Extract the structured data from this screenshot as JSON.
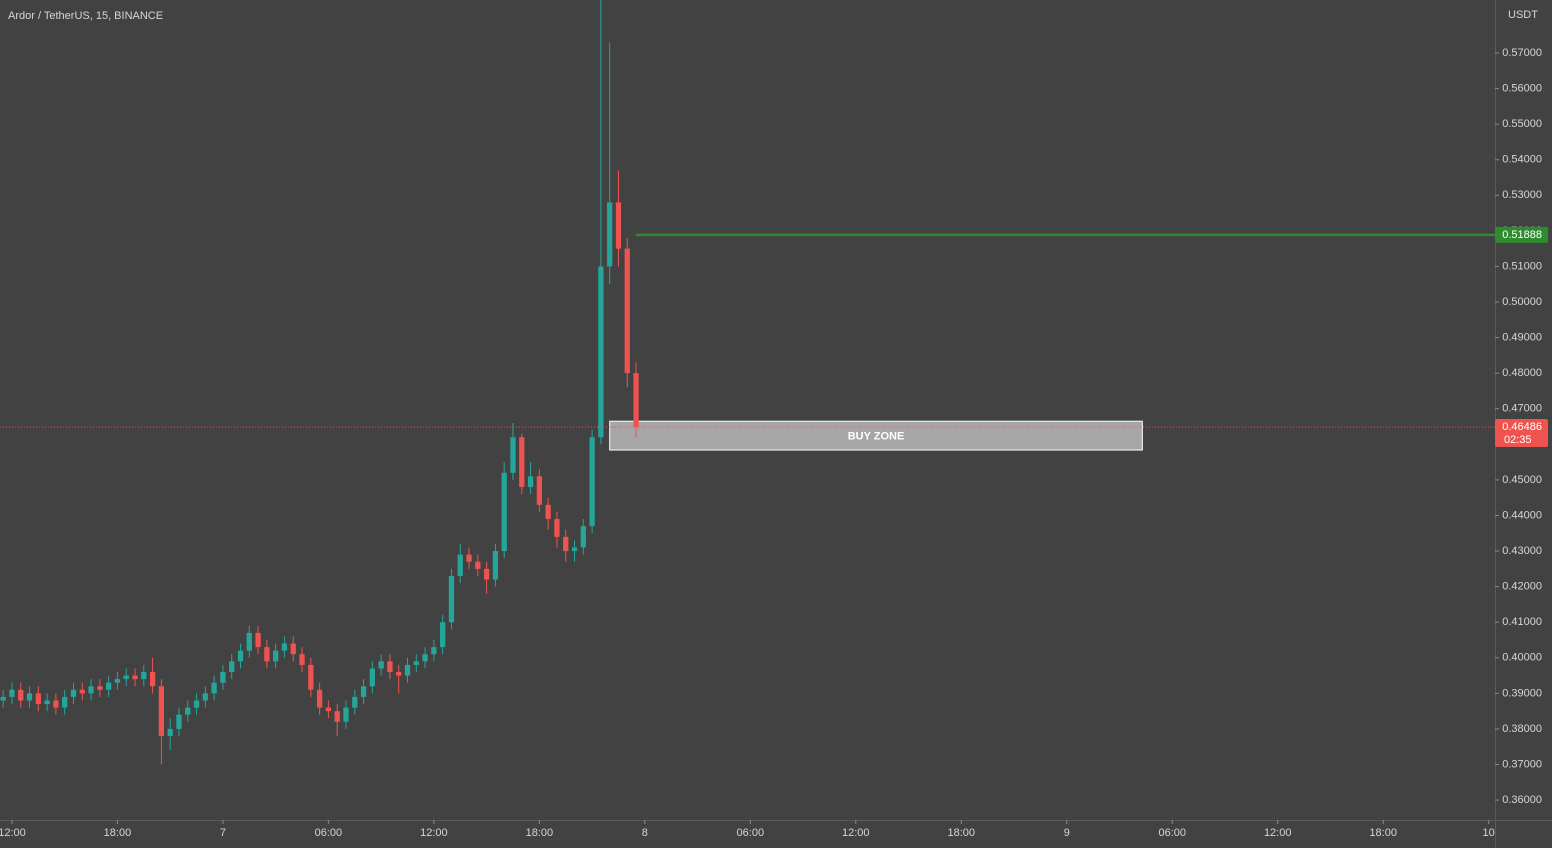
{
  "chart_data": {
    "type": "candlestick",
    "title": "Ardor / TetherUS, 15, BINANCE",
    "currency": "USDT",
    "up_color": "#26a69a",
    "down_color": "#ef5350",
    "x": [
      11.5,
      12,
      12.5,
      13,
      13.5,
      14,
      14.5,
      15,
      15.5,
      16,
      16.5,
      17,
      17.5,
      18,
      18.5,
      19,
      19.5,
      20,
      20.5,
      21,
      21.5,
      22,
      22.5,
      23,
      23.5,
      24,
      24.5,
      25,
      25.5,
      26,
      26.5,
      27,
      27.5,
      28,
      28.5,
      29,
      29.5,
      30,
      30.5,
      31,
      31.5,
      32,
      32.5,
      33,
      33.5,
      34,
      34.5,
      35,
      35.5,
      36,
      36.5,
      37,
      37.5,
      38,
      38.5,
      39,
      39.5,
      40,
      40.5,
      41,
      41.5,
      42,
      42.5,
      43,
      43.5,
      44,
      44.5,
      45,
      45.5,
      46,
      46.5,
      47,
      47.5
    ],
    "open": [
      0.388,
      0.389,
      0.391,
      0.388,
      0.39,
      0.387,
      0.388,
      0.386,
      0.389,
      0.391,
      0.39,
      0.392,
      0.391,
      0.393,
      0.394,
      0.395,
      0.394,
      0.396,
      0.392,
      0.378,
      0.38,
      0.384,
      0.386,
      0.388,
      0.39,
      0.393,
      0.396,
      0.399,
      0.402,
      0.407,
      0.403,
      0.399,
      0.402,
      0.404,
      0.401,
      0.398,
      0.391,
      0.386,
      0.385,
      0.382,
      0.386,
      0.389,
      0.392,
      0.397,
      0.399,
      0.396,
      0.395,
      0.398,
      0.399,
      0.401,
      0.403,
      0.41,
      0.423,
      0.429,
      0.427,
      0.425,
      0.422,
      0.43,
      0.452,
      0.462,
      0.448,
      0.451,
      0.443,
      0.439,
      0.434,
      0.43,
      0.431,
      0.437,
      0.462,
      0.51,
      0.528,
      0.515,
      0.48
    ],
    "high": [
      0.391,
      0.393,
      0.393,
      0.392,
      0.392,
      0.39,
      0.39,
      0.391,
      0.393,
      0.393,
      0.394,
      0.394,
      0.395,
      0.396,
      0.397,
      0.397,
      0.398,
      0.4,
      0.394,
      0.383,
      0.386,
      0.388,
      0.39,
      0.392,
      0.395,
      0.398,
      0.401,
      0.404,
      0.409,
      0.409,
      0.405,
      0.404,
      0.406,
      0.406,
      0.403,
      0.4,
      0.393,
      0.388,
      0.387,
      0.388,
      0.391,
      0.394,
      0.399,
      0.401,
      0.401,
      0.398,
      0.4,
      0.401,
      0.403,
      0.405,
      0.412,
      0.425,
      0.432,
      0.431,
      0.429,
      0.427,
      0.432,
      0.455,
      0.466,
      0.463,
      0.455,
      0.453,
      0.445,
      0.441,
      0.436,
      0.433,
      0.439,
      0.464,
      0.585,
      0.573,
      0.537,
      0.518,
      0.483
    ],
    "low": [
      0.386,
      0.387,
      0.386,
      0.386,
      0.385,
      0.385,
      0.384,
      0.384,
      0.387,
      0.388,
      0.388,
      0.389,
      0.389,
      0.391,
      0.392,
      0.392,
      0.392,
      0.39,
      0.37,
      0.374,
      0.378,
      0.382,
      0.384,
      0.386,
      0.388,
      0.391,
      0.394,
      0.397,
      0.4,
      0.401,
      0.397,
      0.397,
      0.4,
      0.399,
      0.396,
      0.389,
      0.384,
      0.383,
      0.378,
      0.38,
      0.384,
      0.387,
      0.39,
      0.395,
      0.394,
      0.39,
      0.393,
      0.396,
      0.397,
      0.399,
      0.401,
      0.408,
      0.421,
      0.425,
      0.423,
      0.418,
      0.42,
      0.428,
      0.45,
      0.446,
      0.446,
      0.441,
      0.436,
      0.431,
      0.427,
      0.427,
      0.429,
      0.435,
      0.46,
      0.505,
      0.51,
      0.476,
      0.462
    ],
    "close": [
      0.389,
      0.391,
      0.388,
      0.39,
      0.387,
      0.388,
      0.386,
      0.389,
      0.391,
      0.39,
      0.392,
      0.391,
      0.393,
      0.394,
      0.395,
      0.394,
      0.396,
      0.392,
      0.378,
      0.38,
      0.384,
      0.386,
      0.388,
      0.39,
      0.393,
      0.396,
      0.399,
      0.402,
      0.407,
      0.403,
      0.399,
      0.402,
      0.404,
      0.401,
      0.398,
      0.391,
      0.386,
      0.385,
      0.382,
      0.386,
      0.389,
      0.392,
      0.397,
      0.399,
      0.396,
      0.395,
      0.398,
      0.399,
      0.401,
      0.403,
      0.41,
      0.423,
      0.429,
      0.427,
      0.425,
      0.422,
      0.43,
      0.452,
      0.462,
      0.448,
      0.451,
      0.443,
      0.439,
      0.434,
      0.43,
      0.431,
      0.437,
      0.462,
      0.51,
      0.528,
      0.515,
      0.48,
      0.4649
    ],
    "xlim": [
      11.32,
      96.36
    ],
    "ylim": [
      0.3544,
      0.5849
    ],
    "xticks": [
      {
        "value": 12,
        "label": "12:00"
      },
      {
        "value": 18,
        "label": "18:00"
      },
      {
        "value": 24,
        "label": "7"
      },
      {
        "value": 30,
        "label": "06:00"
      },
      {
        "value": 36,
        "label": "12:00"
      },
      {
        "value": 42,
        "label": "18:00"
      },
      {
        "value": 48,
        "label": "8"
      },
      {
        "value": 54,
        "label": "06:00"
      },
      {
        "value": 60,
        "label": "12:00"
      },
      {
        "value": 66,
        "label": "18:00"
      },
      {
        "value": 72,
        "label": "9"
      },
      {
        "value": 78,
        "label": "06:00"
      },
      {
        "value": 84,
        "label": "12:00"
      },
      {
        "value": 90,
        "label": "18:00"
      },
      {
        "value": 96,
        "label": "10"
      }
    ],
    "yticks": [
      {
        "value": 0.36,
        "label": "0.36000"
      },
      {
        "value": 0.37,
        "label": "0.37000"
      },
      {
        "value": 0.38,
        "label": "0.38000"
      },
      {
        "value": 0.39,
        "label": "0.39000"
      },
      {
        "value": 0.4,
        "label": "0.40000"
      },
      {
        "value": 0.41,
        "label": "0.41000"
      },
      {
        "value": 0.42,
        "label": "0.42000"
      },
      {
        "value": 0.43,
        "label": "0.43000"
      },
      {
        "value": 0.44,
        "label": "0.44000"
      },
      {
        "value": 0.45,
        "label": "0.45000"
      },
      {
        "value": 0.46,
        "label": "0.46000"
      },
      {
        "value": 0.47,
        "label": "0.47000"
      },
      {
        "value": 0.48,
        "label": "0.48000"
      },
      {
        "value": 0.49,
        "label": "0.49000"
      },
      {
        "value": 0.5,
        "label": "0.50000"
      },
      {
        "value": 0.51,
        "label": "0.51000"
      },
      {
        "value": 0.52,
        "label": "0.52000"
      },
      {
        "value": 0.53,
        "label": "0.53000"
      },
      {
        "value": 0.54,
        "label": "0.54000"
      },
      {
        "value": 0.55,
        "label": "0.55000"
      },
      {
        "value": 0.56,
        "label": "0.56000"
      },
      {
        "value": 0.57,
        "label": "0.57000"
      }
    ],
    "last_price": {
      "value": 0.46486,
      "countdown": "02:35",
      "color": "#ef5350"
    },
    "level": {
      "value": 0.51888,
      "start": 47.5,
      "color": "#2e8b2e"
    },
    "zone": {
      "text": "BUY ZONE",
      "x": [
        46.0,
        76.3
      ],
      "y": [
        0.4584,
        0.4665
      ]
    }
  }
}
